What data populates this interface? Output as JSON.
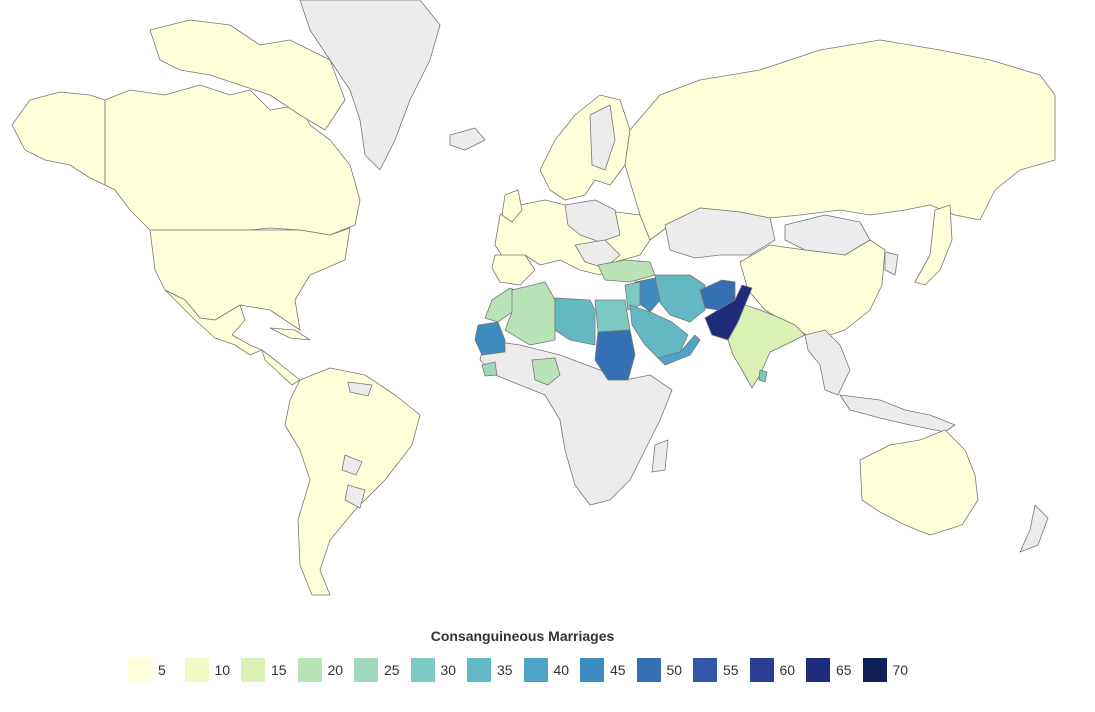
{
  "legend": {
    "title": "Consanguineous Marriages",
    "scale": [
      {
        "label": "5",
        "value": 5,
        "color": "#ffffd9"
      },
      {
        "label": "10",
        "value": 10,
        "color": "#f1f9c4"
      },
      {
        "label": "15",
        "value": 15,
        "color": "#daf0b4"
      },
      {
        "label": "20",
        "value": 20,
        "color": "#b7e3b6"
      },
      {
        "label": "25",
        "value": 25,
        "color": "#9fd8bd"
      },
      {
        "label": "30",
        "value": 30,
        "color": "#7ec8c2"
      },
      {
        "label": "35",
        "value": 35,
        "color": "#64b8c4"
      },
      {
        "label": "40",
        "value": 40,
        "color": "#4ea3c8"
      },
      {
        "label": "45",
        "value": 45,
        "color": "#3e8bbf"
      },
      {
        "label": "50",
        "value": 50,
        "color": "#3670b4"
      },
      {
        "label": "55",
        "value": 55,
        "color": "#3456a6"
      },
      {
        "label": "60",
        "value": 60,
        "color": "#2a3e93"
      },
      {
        "label": "65",
        "value": 65,
        "color": "#1e2c7c"
      },
      {
        "label": "70",
        "value": 70,
        "color": "#0f1f57"
      }
    ]
  },
  "colors": {
    "no_data": "#ececec",
    "border": "#777777",
    "background": "#ffffff"
  }
}
